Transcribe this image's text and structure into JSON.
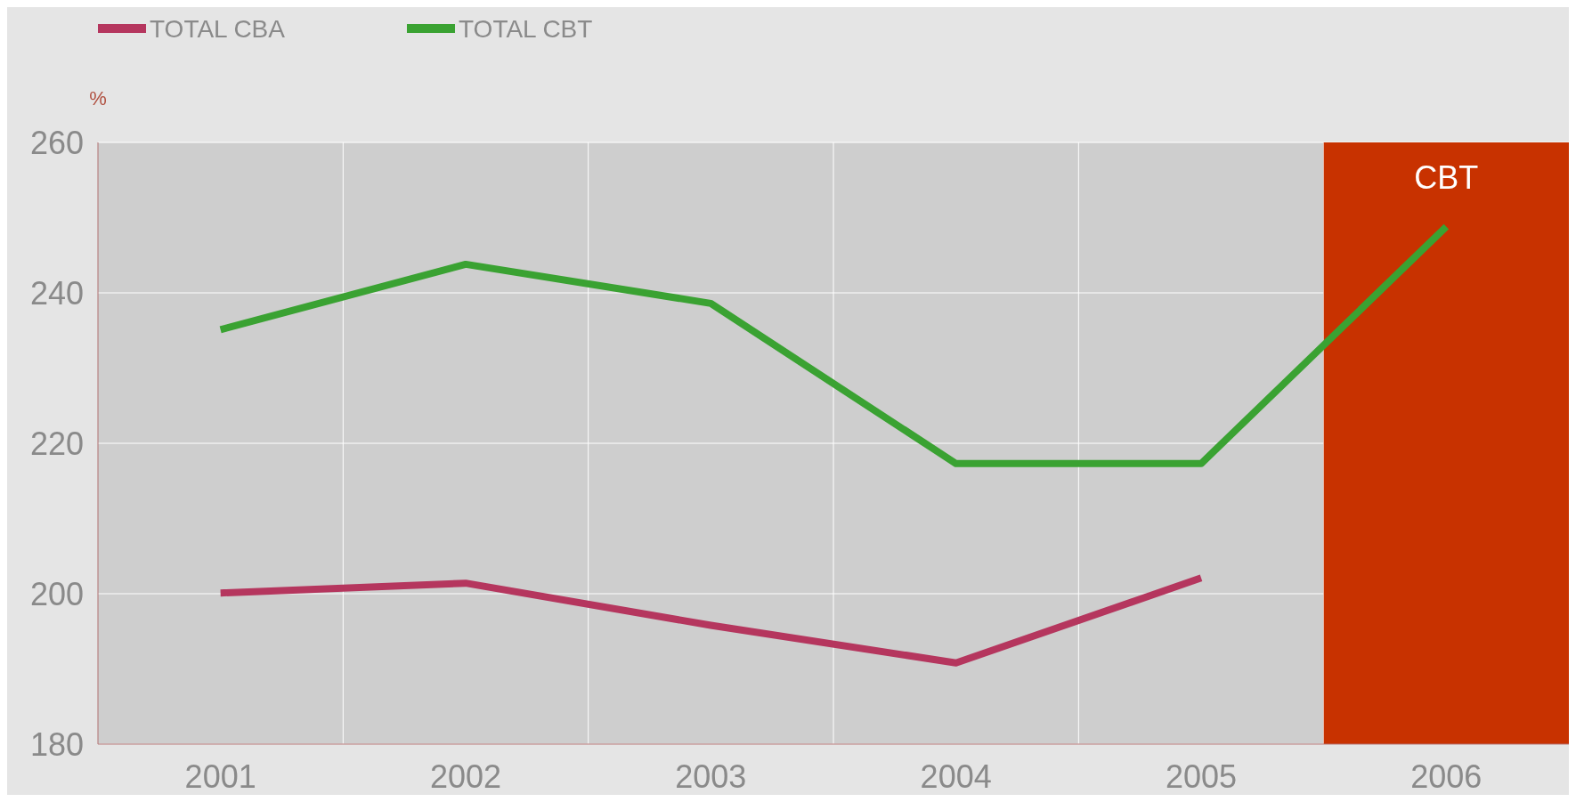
{
  "chart_data": {
    "type": "line",
    "ylabel": "%",
    "categories": [
      "2001",
      "2002",
      "2003",
      "2004",
      "2005",
      "2006"
    ],
    "series": [
      {
        "name": "TOTAL CBA",
        "color": "#b5365e",
        "values": [
          200.1,
          201.4,
          195.8,
          190.8,
          202.1,
          null
        ]
      },
      {
        "name": "TOTAL CBT",
        "color": "#3aa232",
        "values": [
          235.1,
          243.8,
          238.6,
          217.3,
          217.3,
          248.8
        ]
      }
    ],
    "ylim": [
      180,
      260
    ],
    "yticks": [
      180,
      200,
      220,
      240,
      260
    ],
    "grid": true,
    "legend": "top left",
    "line_style": "solid",
    "bands": [
      {
        "axis": "x",
        "from": "2006",
        "to": "2006",
        "label": "CBT",
        "color": "#c83200"
      }
    ]
  }
}
